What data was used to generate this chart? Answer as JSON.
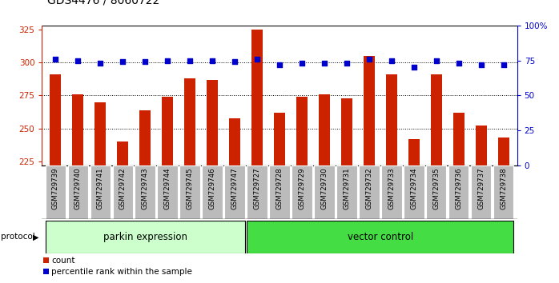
{
  "title": "GDS4476 / 8060722",
  "samples": [
    "GSM729739",
    "GSM729740",
    "GSM729741",
    "GSM729742",
    "GSM729743",
    "GSM729744",
    "GSM729745",
    "GSM729746",
    "GSM729747",
    "GSM729727",
    "GSM729728",
    "GSM729729",
    "GSM729730",
    "GSM729731",
    "GSM729732",
    "GSM729733",
    "GSM729734",
    "GSM729735",
    "GSM729736",
    "GSM729737",
    "GSM729738"
  ],
  "counts": [
    291,
    276,
    270,
    240,
    264,
    274,
    288,
    287,
    258,
    325,
    262,
    274,
    276,
    273,
    305,
    291,
    242,
    291,
    262,
    252,
    243
  ],
  "percentile_ranks": [
    76,
    75,
    73,
    74,
    74,
    75,
    75,
    75,
    74,
    76,
    72,
    73,
    73,
    73,
    76,
    75,
    70,
    75,
    73,
    72,
    72
  ],
  "parkin_count": 9,
  "vector_count": 12,
  "parkin_label": "parkin expression",
  "vector_label": "vector control",
  "protocol_label": "protocol",
  "ylim_left": [
    222,
    328
  ],
  "ylim_right": [
    0,
    100
  ],
  "yticks_left": [
    225,
    250,
    275,
    300,
    325
  ],
  "yticks_right": [
    0,
    25,
    50,
    75,
    100
  ],
  "bar_color": "#cc2200",
  "dot_color": "#0000cc",
  "parkin_bg": "#ccffcc",
  "vector_bg": "#44dd44",
  "xticklabel_bg": "#bbbbbb",
  "grid_color": "#000000",
  "title_fontsize": 10,
  "tick_fontsize": 7.5,
  "bar_width": 0.5
}
